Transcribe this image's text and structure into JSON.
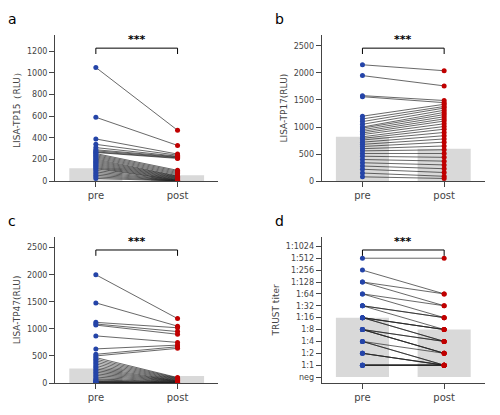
{
  "chart_data": [
    {
      "type": "paired",
      "title": "a",
      "ylabel": "LISA-TP15（RLU）",
      "categories": [
        "pre",
        "post"
      ],
      "ylim": [
        0,
        1350
      ],
      "yticks": [
        0,
        200,
        400,
        600,
        800,
        1000,
        1200
      ],
      "grid": false,
      "annotations": [
        {
          "text": "***"
        }
      ],
      "series": [
        {
          "type": "bar",
          "color": "#d9d9d9",
          "values": [
            120,
            55
          ]
        },
        {
          "type": "line",
          "color": "#222222",
          "marker": "circle",
          "colors": [
            "#2444a8",
            "#c00000"
          ],
          "values": [
            [
              1050,
              590,
              390,
              340,
              310,
              290,
              280,
              270,
              265,
              255,
              245,
              235,
              225,
              215,
              205,
              195,
              185,
              175,
              165,
              155,
              145,
              135,
              125,
              115,
              100,
              85,
              70,
              55,
              40,
              25
            ],
            [
              470,
              330,
              250,
              240,
              230,
              225,
              220,
              215,
              210,
              100,
              90,
              80,
              70,
              60,
              50,
              45,
              40,
              35,
              30,
              25,
              20,
              15,
              10,
              8,
              5,
              3,
              2,
              1,
              1,
              1
            ]
          ]
        }
      ]
    },
    {
      "type": "paired",
      "title": "b",
      "ylabel": "LISA-TP17(RLU)",
      "categories": [
        "pre",
        "post"
      ],
      "ylim": [
        0,
        2700
      ],
      "yticks": [
        0,
        500,
        1000,
        1500,
        2000,
        2500
      ],
      "grid": false,
      "annotations": [
        {
          "text": "***"
        }
      ],
      "series": [
        {
          "type": "bar",
          "color": "#d9d9d9",
          "values": [
            820,
            600
          ]
        },
        {
          "type": "line",
          "color": "#222222",
          "marker": "circle",
          "colors": [
            "#2444a8",
            "#c00000"
          ],
          "values": [
            [
              2150,
              1950,
              1580,
              1560,
              1200,
              1150,
              1100,
              1050,
              1000,
              980,
              950,
              920,
              890,
              860,
              820,
              790,
              760,
              720,
              680,
              640,
              600,
              560,
              510,
              460,
              400,
              340,
              280,
              220,
              150,
              80
            ],
            [
              2040,
              1760,
              1490,
              1450,
              1420,
              1380,
              1350,
              1310,
              1270,
              1230,
              1190,
              1150,
              1110,
              1060,
              1010,
              960,
              900,
              840,
              780,
              720,
              650,
              580,
              510,
              440,
              370,
              300,
              230,
              160,
              90,
              50
            ]
          ]
        }
      ]
    },
    {
      "type": "paired",
      "title": "c",
      "ylabel": "LISA-TP47(RLU)",
      "categories": [
        "pre",
        "post"
      ],
      "ylim": [
        0,
        2700
      ],
      "yticks": [
        0,
        500,
        1000,
        1500,
        2000,
        2500
      ],
      "grid": false,
      "annotations": [
        {
          "text": "***"
        }
      ],
      "series": [
        {
          "type": "bar",
          "color": "#d9d9d9",
          "values": [
            270,
            130
          ]
        },
        {
          "type": "line",
          "color": "#222222",
          "marker": "circle",
          "colors": [
            "#2444a8",
            "#c00000"
          ],
          "values": [
            [
              2000,
              1480,
              1120,
              1090,
              1070,
              870,
              630,
              530,
              500,
              470,
              440,
              410,
              380,
              350,
              320,
              290,
              260,
              230,
              200,
              170,
              140,
              110,
              80,
              60,
              40,
              30,
              20,
              15,
              10,
              5
            ],
            [
              1190,
              1050,
              1020,
              950,
              900,
              750,
              700,
              670,
              640,
              100,
              90,
              80,
              70,
              60,
              50,
              40,
              35,
              30,
              25,
              20,
              15,
              10,
              8,
              5,
              3,
              2,
              1,
              1,
              1,
              1
            ]
          ]
        }
      ]
    },
    {
      "type": "paired",
      "title": "d",
      "ylabel": "TRUST titer",
      "categories": [
        "pre",
        "post"
      ],
      "ylim": [
        -0.5,
        11.8
      ],
      "yticks": [
        {
          "value": 0,
          "label": "neg"
        },
        {
          "value": 1,
          "label": "1:1"
        },
        {
          "value": 2,
          "label": "1:2"
        },
        {
          "value": 3,
          "label": "1:4"
        },
        {
          "value": 4,
          "label": "1:8"
        },
        {
          "value": 5,
          "label": "1:16"
        },
        {
          "value": 6,
          "label": "1:32"
        },
        {
          "value": 7,
          "label": "1:64"
        },
        {
          "value": 8,
          "label": "1:128"
        },
        {
          "value": 9,
          "label": "1:256"
        },
        {
          "value": 10,
          "label": "1:512"
        },
        {
          "value": 11,
          "label": "1:1024"
        }
      ],
      "grid": false,
      "annotations": [
        {
          "text": "***"
        }
      ],
      "series": [
        {
          "type": "bar",
          "color": "#d9d9d9",
          "values": [
            5,
            4
          ]
        },
        {
          "type": "line",
          "color": "#222222",
          "marker": "circle",
          "colors": [
            "#2444a8",
            "#c00000"
          ],
          "values": [
            [
              10,
              9,
              8,
              8,
              7,
              7,
              6,
              6,
              6,
              5,
              5,
              5,
              5,
              5,
              4,
              4,
              4,
              4,
              4,
              3,
              3,
              3,
              2,
              2,
              2,
              1,
              1,
              1,
              1,
              1
            ],
            [
              10,
              7,
              7,
              6,
              6,
              5,
              5,
              5,
              4,
              4,
              4,
              4,
              3,
              3,
              3,
              3,
              2,
              2,
              2,
              2,
              1,
              1,
              1,
              1,
              1,
              1,
              1,
              1,
              1,
              1
            ]
          ]
        }
      ]
    }
  ]
}
